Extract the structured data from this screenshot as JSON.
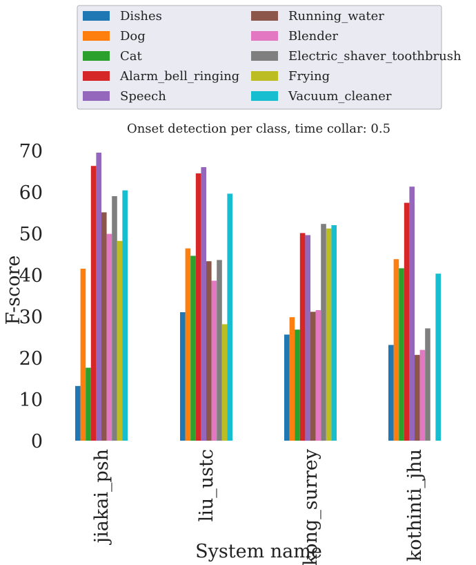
{
  "chart_data": {
    "type": "bar",
    "title": "Onset detection per class, time collar: 0.5",
    "xlabel": "System name",
    "ylabel": "F-score",
    "ylim": [
      0,
      72
    ],
    "yticks": [
      0,
      10,
      20,
      30,
      40,
      50,
      60,
      70
    ],
    "grid": false,
    "legend_position": "top",
    "categories": [
      "jiakai_psh",
      "liu_ustc",
      "kong_surrey",
      "kothinti_jhu"
    ],
    "series": [
      {
        "name": "Dishes",
        "color": "#1f77b4",
        "values": [
          13.2,
          31.0,
          25.6,
          23.1
        ]
      },
      {
        "name": "Dog",
        "color": "#ff7f0e",
        "values": [
          41.5,
          46.4,
          29.8,
          43.8
        ]
      },
      {
        "name": "Cat",
        "color": "#2ca02c",
        "values": [
          17.6,
          44.6,
          26.8,
          41.6
        ]
      },
      {
        "name": "Alarm_bell_ringing",
        "color": "#d62728",
        "values": [
          66.3,
          64.5,
          50.1,
          57.4
        ]
      },
      {
        "name": "Speech",
        "color": "#9467bd",
        "values": [
          69.5,
          66.0,
          49.6,
          61.3
        ]
      },
      {
        "name": "Running_water",
        "color": "#8c564b",
        "values": [
          55.1,
          43.3,
          31.1,
          20.7
        ]
      },
      {
        "name": "Blender",
        "color": "#e377c2",
        "values": [
          49.9,
          38.6,
          31.5,
          21.9
        ]
      },
      {
        "name": "Electric_shaver_toothbrush",
        "color": "#7f7f7f",
        "values": [
          59.0,
          43.6,
          52.3,
          27.1
        ]
      },
      {
        "name": "Frying",
        "color": "#bcbd22",
        "values": [
          48.2,
          28.1,
          51.2,
          0
        ]
      },
      {
        "name": "Vacuum_cleaner",
        "color": "#17becf",
        "values": [
          60.4,
          59.6,
          52.0,
          40.3
        ]
      }
    ]
  },
  "legend_bg": "#eaeaf2"
}
